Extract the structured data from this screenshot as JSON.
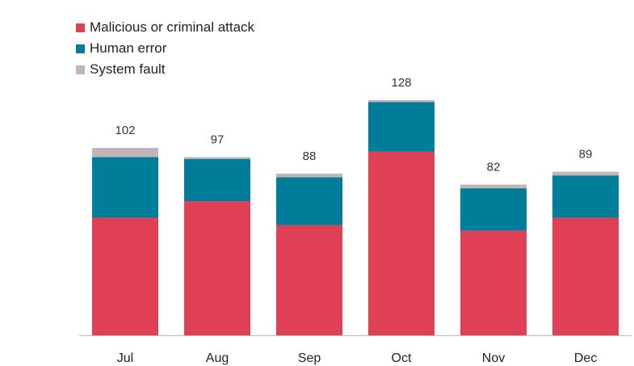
{
  "chart_data": {
    "type": "bar",
    "stacked": true,
    "categories": [
      "Jul",
      "Aug",
      "Sep",
      "Oct",
      "Nov",
      "Dec"
    ],
    "totals": [
      102,
      97,
      88,
      128,
      82,
      89
    ],
    "series": [
      {
        "name": "Malicious or criminal attack",
        "color": "#e04055",
        "values": [
          64,
          73,
          60,
          100,
          57,
          64
        ]
      },
      {
        "name": "Human error",
        "color": "#007e99",
        "values": [
          33,
          23,
          26,
          27,
          23,
          23
        ]
      },
      {
        "name": "System fault",
        "color": "#c3b4b8",
        "values": [
          5,
          1,
          2,
          1,
          2,
          2
        ]
      }
    ],
    "ylim": [
      0,
      135
    ],
    "legend_position": "top-left",
    "grid": false
  }
}
